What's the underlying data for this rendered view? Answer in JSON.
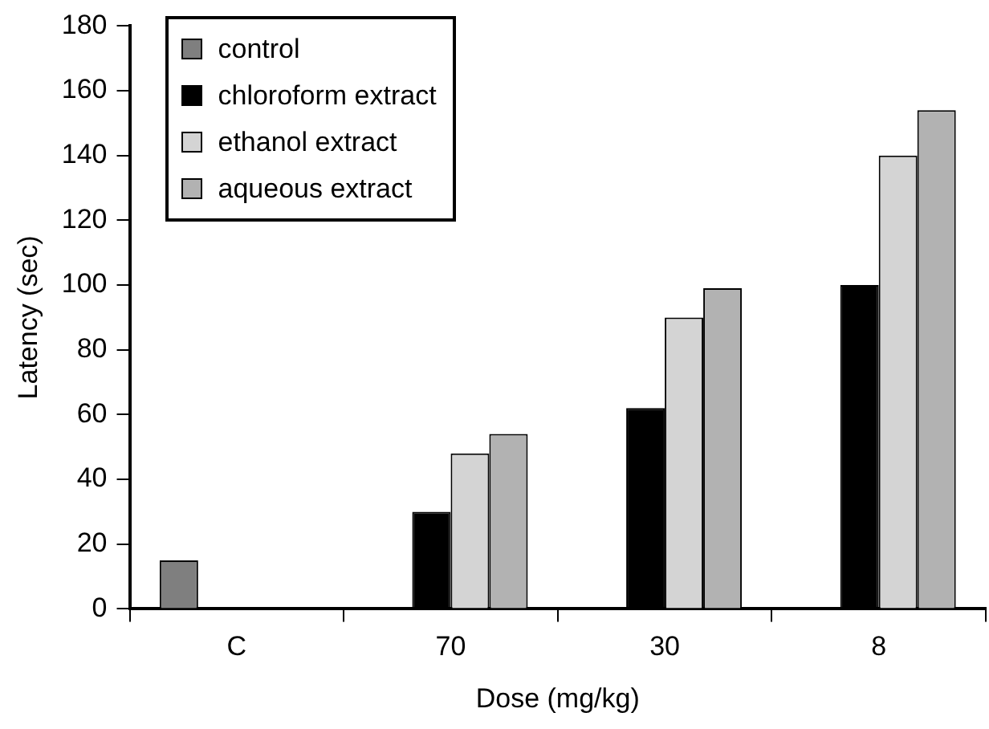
{
  "chart_data": {
    "type": "bar",
    "xlabel": "Dose (mg/kg)",
    "ylabel": "Latency (sec)",
    "categories": [
      "C",
      "70",
      "30",
      "8"
    ],
    "series": [
      {
        "name": "control",
        "color": "#7f7f7f",
        "values": [
          15,
          null,
          null,
          null
        ]
      },
      {
        "name": "chloroform extract",
        "color": "#000000",
        "values": [
          null,
          30,
          62,
          100
        ]
      },
      {
        "name": "ethanol extract",
        "color": "#d4d4d4",
        "values": [
          null,
          48,
          90,
          140
        ]
      },
      {
        "name": "aqueous extract",
        "color": "#b2b2b2",
        "values": [
          null,
          54,
          99,
          154
        ]
      }
    ],
    "ylim": [
      0,
      180
    ],
    "yticks": [
      0,
      20,
      40,
      60,
      80,
      100,
      120,
      140,
      160,
      180
    ],
    "grid": false,
    "legend": "top left"
  }
}
